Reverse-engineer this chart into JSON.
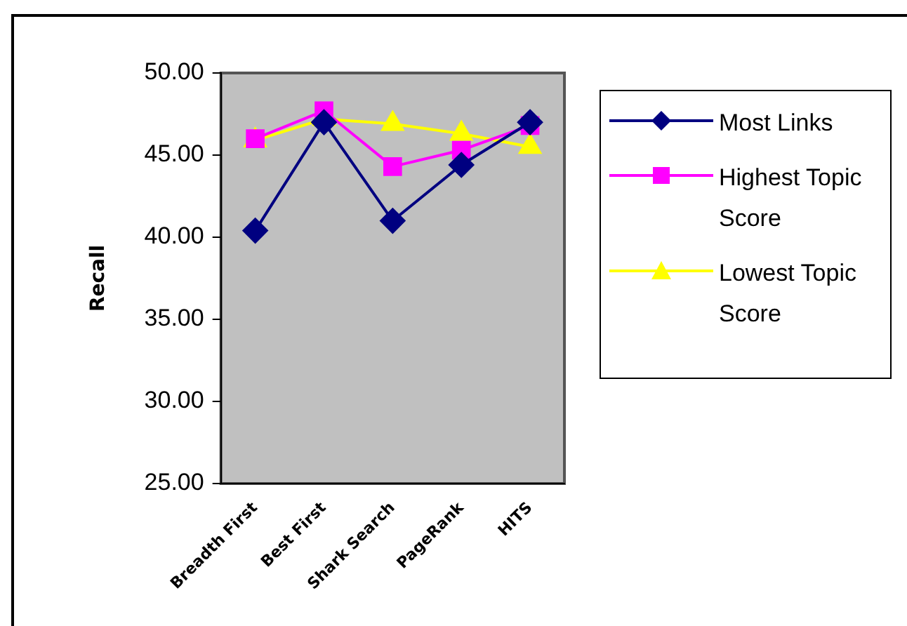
{
  "chart_data": {
    "type": "line",
    "ylabel": "Recall",
    "categories": [
      "Breadth First",
      "Best First",
      "Shark Search",
      "PageRank",
      "HITS"
    ],
    "series": [
      {
        "name": "Most Links",
        "color": "#000080",
        "marker": "diamond",
        "values": [
          40.4,
          47.0,
          41.0,
          44.4,
          47.0
        ]
      },
      {
        "name": "Highest Topic Score",
        "color": "#ff00ff",
        "marker": "square",
        "values": [
          46.0,
          47.7,
          44.3,
          45.3,
          46.8
        ]
      },
      {
        "name": "Lowest Topic Score",
        "color": "#ffff00",
        "marker": "triangle",
        "values": [
          45.9,
          47.2,
          46.9,
          46.3,
          45.5
        ]
      }
    ],
    "ylim": [
      25,
      50
    ],
    "yticks": [
      {
        "value": 25,
        "label": "25.00"
      },
      {
        "value": 30,
        "label": "30.00"
      },
      {
        "value": 35,
        "label": "35.00"
      },
      {
        "value": 40,
        "label": "40.00"
      },
      {
        "value": 45,
        "label": "45.00"
      },
      {
        "value": 50,
        "label": "50.00"
      }
    ],
    "grid": false,
    "legend": "right",
    "line_style": "solid"
  }
}
